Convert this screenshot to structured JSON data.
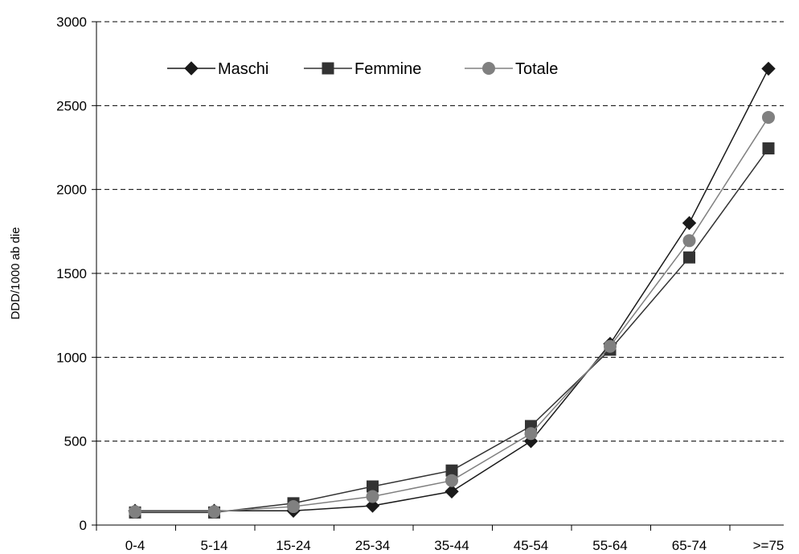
{
  "chart_data": {
    "type": "line",
    "title": "",
    "xlabel": "",
    "ylabel": "DDD/1000 ab die",
    "categories": [
      "0-4",
      "5-14",
      "15-24",
      "25-34",
      "35-44",
      "45-54",
      "55-64",
      "65-74",
      ">=75"
    ],
    "ylim": [
      0,
      3000
    ],
    "yticks": [
      "0",
      "500",
      "1000",
      "1500",
      "2000",
      "2500",
      "3000"
    ],
    "grid": "horizontal-dashed",
    "legend_position": "top-left",
    "series": [
      {
        "name": "Maschi",
        "marker": "diamond",
        "color": "#1a1a1a",
        "values": [
          85,
          85,
          85,
          115,
          200,
          500,
          1080,
          1800,
          2720
        ]
      },
      {
        "name": "Femmine",
        "marker": "square",
        "color": "#333333",
        "values": [
          75,
          75,
          130,
          230,
          325,
          590,
          1045,
          1595,
          2245
        ]
      },
      {
        "name": "Totale",
        "marker": "circle",
        "color": "#808080",
        "values": [
          80,
          80,
          110,
          170,
          265,
          545,
          1065,
          1695,
          2430
        ]
      }
    ]
  }
}
